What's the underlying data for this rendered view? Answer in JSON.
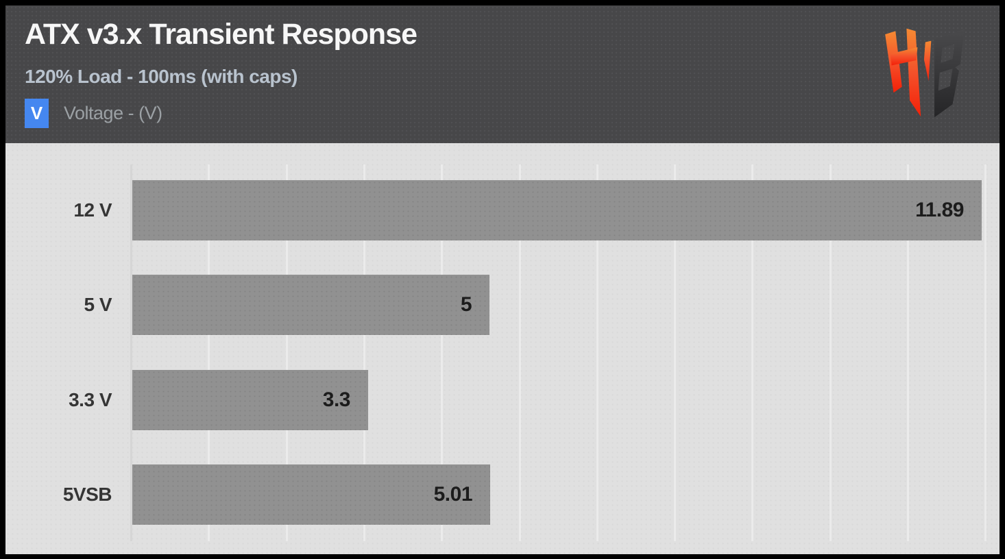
{
  "header": {
    "title": "ATX v3.x Transient Response",
    "subtitle": "120% Load - 100ms (with caps)",
    "legend": {
      "badge_letter": "V",
      "badge_color": "#4587f0",
      "label": "Voltage - (V)"
    },
    "logo_name": "hardware-busters-hb-logo"
  },
  "colors": {
    "header_bg": "#474749",
    "plot_bg": "#e0e0e0",
    "bar": "#919191",
    "accent_blue": "#4587f0",
    "value_text": "#1c1c1c",
    "category_text": "#353535",
    "subtitle_text": "#b9c3ce",
    "logo_orange": "#f4512a",
    "logo_dark": "#39393b"
  },
  "chart_data": {
    "type": "bar",
    "orientation": "horizontal",
    "title": "ATX v3.x Transient Response",
    "subtitle": "120% Load - 100ms (with caps)",
    "series_name": "Voltage - (V)",
    "categories": [
      "12 V",
      "5 V",
      "3.3 V",
      "5VSB"
    ],
    "values": [
      11.89,
      5,
      3.3,
      5.01
    ],
    "value_labels": [
      "11.89",
      "5",
      "3.3",
      "5.01"
    ],
    "value_label_position": "inside-end",
    "xlim": [
      0,
      11.95
    ],
    "grid": true,
    "legend_position": "top-left",
    "bar_color": "#919191"
  }
}
